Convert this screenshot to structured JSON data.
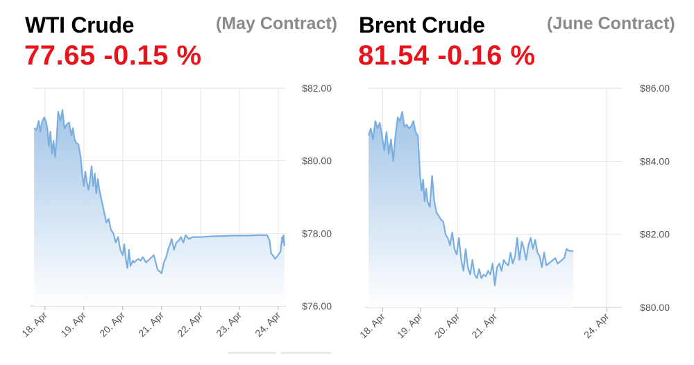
{
  "colors": {
    "line": "#7aaee0",
    "fill_top": "#9ec3e6",
    "grid": "#e6e6e6",
    "price": "#e8141b",
    "subtitle": "#8a8a8a"
  },
  "wti": {
    "title": "WTI Crude",
    "contract": "(May Contract)",
    "price": "77.65",
    "change": "-0.15 %"
  },
  "brent": {
    "title": "Brent Crude",
    "contract": "(June Contract)",
    "price": "81.54",
    "change": "-0.16 %"
  },
  "chart_data": [
    {
      "type": "area",
      "ylim": [
        76,
        82
      ],
      "xlim": [
        17.7,
        24.2
      ],
      "yticks": [
        82,
        80,
        78,
        76
      ],
      "ytick_labels": [
        "$82.00",
        "$80.00",
        "$78.00",
        "$76.00"
      ],
      "xticks": [
        18,
        19,
        20,
        21,
        22,
        23,
        24
      ],
      "xtick_labels": [
        "18. Apr",
        "19. Apr",
        "20. Apr",
        "21. Apr",
        "22. Apr",
        "23. Apr",
        "24. Apr"
      ],
      "grid": true,
      "x": [
        17.72,
        17.78,
        17.84,
        17.88,
        17.92,
        17.98,
        18.02,
        18.06,
        18.1,
        18.14,
        18.18,
        18.22,
        18.26,
        18.3,
        18.34,
        18.4,
        18.45,
        18.5,
        18.56,
        18.62,
        18.68,
        18.72,
        18.76,
        18.8,
        18.86,
        18.92,
        18.96,
        19.0,
        19.04,
        19.08,
        19.12,
        19.16,
        19.2,
        19.24,
        19.28,
        19.32,
        19.36,
        19.4,
        19.44,
        19.48,
        19.52,
        19.58,
        19.64,
        19.7,
        19.76,
        19.82,
        19.88,
        19.94,
        20.0,
        20.04,
        20.08,
        20.12,
        20.16,
        20.2,
        20.26,
        20.3,
        20.34,
        20.4,
        20.46,
        20.52,
        20.6,
        20.7,
        20.8,
        20.9,
        21.0,
        21.06,
        21.12,
        21.18,
        21.22,
        21.26,
        21.32,
        21.38,
        21.44,
        21.5,
        21.56,
        21.62,
        21.7,
        21.8,
        21.9,
        22.0,
        22.3,
        22.6,
        22.9,
        23.2,
        23.5,
        23.72,
        23.78,
        23.82,
        23.86,
        23.92,
        24.0,
        24.06,
        24.1,
        24.12,
        24.14,
        24.16
      ],
      "y": [
        80.9,
        80.85,
        81.1,
        80.8,
        81.05,
        81.2,
        81.1,
        80.9,
        80.4,
        80.8,
        80.2,
        80.55,
        80.1,
        80.6,
        81.35,
        81.1,
        81.4,
        80.9,
        81.0,
        81.05,
        80.7,
        80.9,
        80.6,
        80.5,
        80.45,
        80.1,
        79.6,
        79.3,
        79.7,
        79.4,
        79.2,
        79.5,
        79.85,
        79.3,
        79.65,
        79.1,
        79.5,
        79.2,
        79.0,
        78.8,
        78.6,
        78.3,
        78.4,
        78.1,
        78.0,
        77.75,
        77.9,
        77.55,
        77.4,
        77.7,
        77.3,
        77.05,
        77.55,
        77.1,
        77.25,
        77.2,
        77.25,
        77.3,
        77.25,
        77.35,
        77.2,
        77.3,
        77.4,
        77.0,
        76.9,
        77.2,
        77.35,
        77.6,
        77.7,
        77.85,
        77.55,
        77.75,
        77.8,
        77.9,
        77.75,
        77.95,
        77.85,
        77.9,
        77.9,
        77.9,
        77.92,
        77.93,
        77.94,
        77.94,
        77.95,
        77.95,
        77.8,
        77.45,
        77.4,
        77.3,
        77.4,
        77.5,
        77.9,
        77.75,
        77.95,
        77.65
      ]
    },
    {
      "type": "area",
      "ylim": [
        80,
        86
      ],
      "xlim": [
        17.6,
        24.4
      ],
      "yticks": [
        86,
        84,
        82,
        80
      ],
      "ytick_labels": [
        "$86.00",
        "$84.00",
        "$82.00",
        "$80.00"
      ],
      "xticks": [
        18,
        19,
        20,
        21,
        24
      ],
      "xtick_labels": [
        "18. Apr",
        "19. Apr",
        "20. Apr",
        "21. Apr",
        "24. Apr"
      ],
      "grid": true,
      "x": [
        17.62,
        17.68,
        17.74,
        17.8,
        17.86,
        17.92,
        17.98,
        18.04,
        18.1,
        18.16,
        18.22,
        18.28,
        18.34,
        18.4,
        18.46,
        18.52,
        18.58,
        18.64,
        18.7,
        18.76,
        18.82,
        18.88,
        18.94,
        19.0,
        19.04,
        19.08,
        19.12,
        19.16,
        19.2,
        19.26,
        19.32,
        19.38,
        19.44,
        19.5,
        19.56,
        19.62,
        19.68,
        19.74,
        19.8,
        19.86,
        19.92,
        19.98,
        20.04,
        20.1,
        20.16,
        20.22,
        20.28,
        20.34,
        20.4,
        20.46,
        20.52,
        20.58,
        20.64,
        20.7,
        20.76,
        20.82,
        20.88,
        20.94,
        21.0,
        21.06,
        21.12,
        21.18,
        21.24,
        21.3,
        21.36,
        21.42,
        21.48,
        21.54,
        21.6,
        21.66,
        21.72,
        21.78,
        21.84,
        21.9,
        21.96,
        22.02,
        22.08,
        22.14,
        22.2,
        22.26,
        22.32,
        22.38,
        22.44,
        22.5,
        22.56,
        22.62,
        22.68,
        22.74,
        22.8,
        22.86,
        22.92,
        22.98,
        23.04,
        23.1
      ],
      "y": [
        84.7,
        84.9,
        84.6,
        85.1,
        84.9,
        85.05,
        84.7,
        84.3,
        84.8,
        84.2,
        84.6,
        84.0,
        84.7,
        85.2,
        85.1,
        85.35,
        84.95,
        85.0,
        84.9,
        84.95,
        85.1,
        84.8,
        84.7,
        83.6,
        83.2,
        83.5,
        82.9,
        83.25,
        82.9,
        82.75,
        83.6,
        82.9,
        82.6,
        82.5,
        82.4,
        82.35,
        82.0,
        81.9,
        81.7,
        82.05,
        81.6,
        81.45,
        81.9,
        81.3,
        81.0,
        81.6,
        81.1,
        80.9,
        81.3,
        80.9,
        80.8,
        81.05,
        80.8,
        80.9,
        80.85,
        81.0,
        80.9,
        81.2,
        80.6,
        81.1,
        81.2,
        81.0,
        81.3,
        81.2,
        81.15,
        81.5,
        81.2,
        81.4,
        81.9,
        81.3,
        81.8,
        81.6,
        81.3,
        81.7,
        81.9,
        81.6,
        81.85,
        81.5,
        81.4,
        81.1,
        81.5,
        81.15,
        81.2,
        81.25,
        81.3,
        81.35,
        81.2,
        81.25,
        81.3,
        81.35,
        81.6,
        81.55,
        81.55,
        81.54
      ]
    }
  ]
}
